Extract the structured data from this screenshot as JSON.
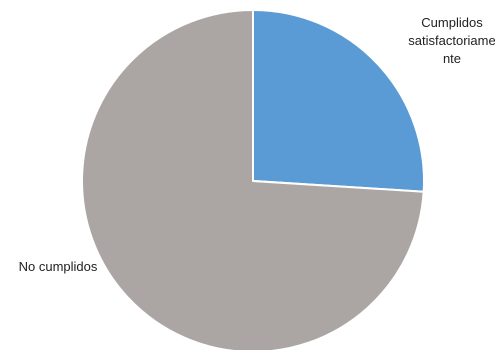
{
  "chart_data": {
    "type": "pie",
    "start_angle_deg": 0,
    "direction": "clockwise",
    "slices": [
      {
        "label": "Cumplidos satisfactoriamente",
        "label_lines": [
          "Cumplidos",
          "satisfactoriame",
          "nte"
        ],
        "value": 26,
        "color": "#5b9bd5"
      },
      {
        "label": "No cumplidos",
        "label_lines": [
          "No cumplidos"
        ],
        "value": 74,
        "color": "#aba6a4"
      }
    ],
    "title": "",
    "legend": "none"
  }
}
